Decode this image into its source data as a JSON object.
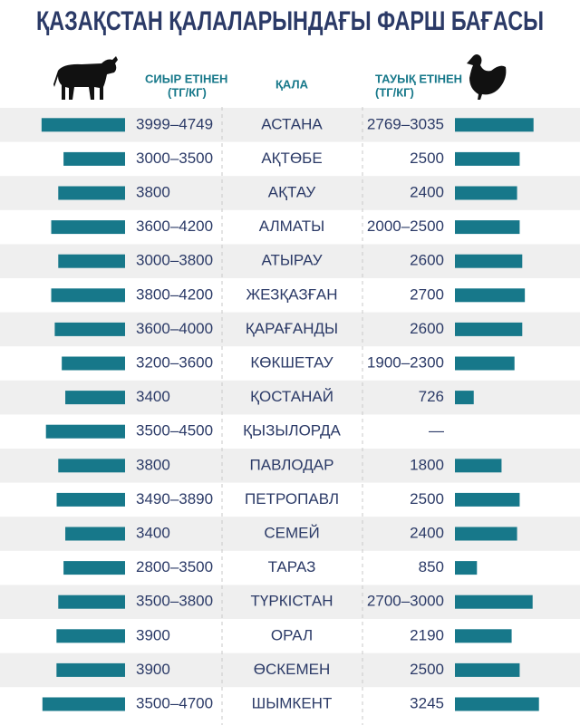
{
  "chart_data": {
    "type": "paired-bar",
    "title": "ҚАЗАҚСТАН ҚАЛАЛАРЫНДАҒЫ ФАРШ БАҒАСЫ",
    "category_header": "ҚАЛА",
    "categories": [
      "АСТАНА",
      "АҚТӨБЕ",
      "АҚТАУ",
      "АЛМАТЫ",
      "АТЫРАУ",
      "ЖЕЗҚАЗҒАН",
      "ҚАРАҒАНДЫ",
      "КӨКШЕТАУ",
      "ҚОСТАНАЙ",
      "ҚЫЗЫЛОРДА",
      "ПАВЛОДАР",
      "ПЕТРОПАВЛ",
      "СЕМЕЙ",
      "ТАРАЗ",
      "ТҮРКІСТАН",
      "ОРАЛ",
      "ӨСКЕМЕН",
      "ШЫМКЕНТ"
    ],
    "series": [
      {
        "name": "СИЫР ЕТІНЕН",
        "unit": "(ТГ/КГ)",
        "color": "#17788a",
        "xlim": [
          0,
          5000
        ],
        "low": [
          3999,
          3000,
          null,
          3600,
          3000,
          3800,
          3600,
          3200,
          null,
          3500,
          null,
          3490,
          null,
          2800,
          3500,
          null,
          null,
          3500
        ],
        "values": [
          4749,
          3500,
          3800,
          4200,
          3800,
          4200,
          4000,
          3600,
          3400,
          4500,
          3800,
          3890,
          3400,
          3500,
          3800,
          3900,
          3900,
          4700
        ],
        "value_labels": [
          "3999–4749",
          "3000–3500",
          "3800",
          "3600–4200",
          "3000–3800",
          "3800–4200",
          "3600–4000",
          "3200–3600",
          "3400",
          "3500–4500",
          "3800",
          "3490–3890",
          "3400",
          "2800–3500",
          "3500–3800",
          "3900",
          "3900",
          "3500–4700"
        ]
      },
      {
        "name": "ТАУЫҚ ЕТІНЕН",
        "unit": "(ТГ/КГ)",
        "color": "#17788a",
        "xlim": [
          0,
          3500
        ],
        "low": [
          2769,
          null,
          null,
          2000,
          null,
          null,
          null,
          1900,
          null,
          null,
          null,
          null,
          null,
          null,
          2700,
          null,
          null,
          null
        ],
        "values": [
          3035,
          2500,
          2400,
          2500,
          2600,
          2700,
          2600,
          2300,
          726,
          null,
          1800,
          2500,
          2400,
          850,
          3000,
          2190,
          2500,
          3245
        ],
        "value_labels": [
          "2769–3035",
          "2500",
          "2400",
          "2000–2500",
          "2600",
          "2700",
          "2600",
          "1900–2300",
          "726",
          "—",
          "1800",
          "2500",
          "2400",
          "850",
          "2700–3000",
          "2190",
          "2500",
          "3245"
        ]
      }
    ]
  }
}
